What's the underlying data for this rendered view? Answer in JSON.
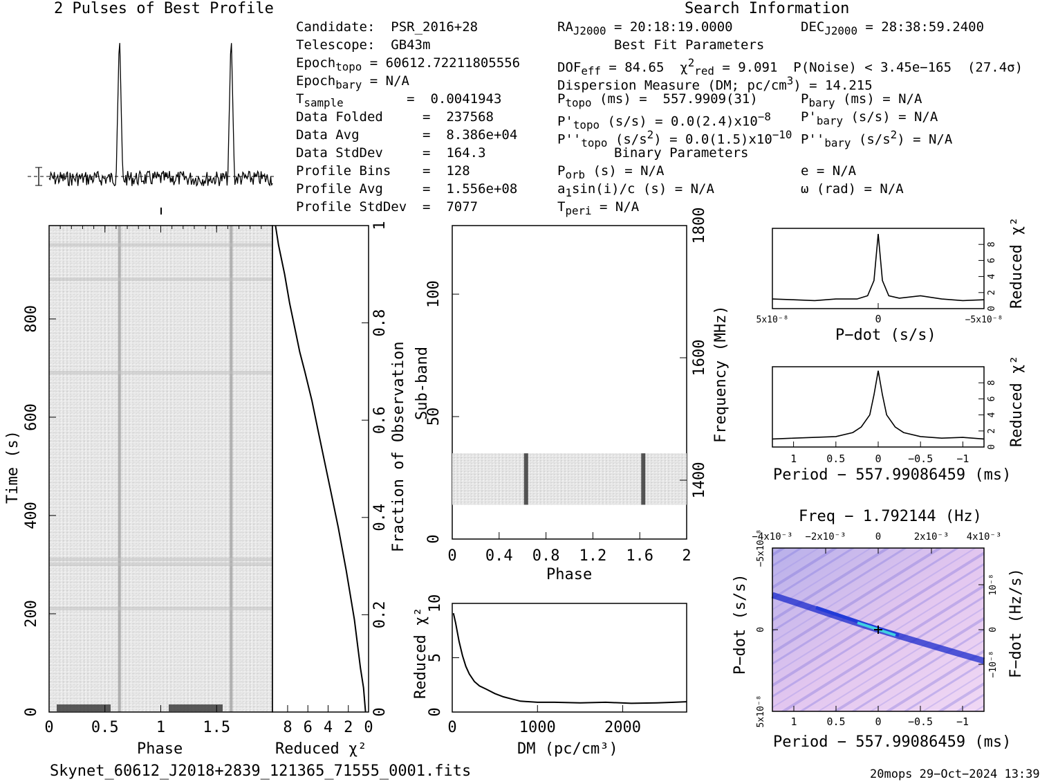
{
  "titles": {
    "profile": "2 Pulses of Best Profile",
    "search": "Search Information",
    "best_fit": "Best Fit Parameters",
    "binary": "Binary Parameters"
  },
  "info": {
    "candidate": "Candidate:  PSR_2016+28",
    "telescope": "Telescope:  GB43m",
    "epoch_topo": "Epoch<sub>topo</sub> = 60612.72211805556",
    "epoch_bary": "Epoch<sub>bary</sub> = N/A",
    "t_sample": "T<sub>sample</sub>        =  0.0041943",
    "data_folded": "Data Folded     =  237568",
    "data_avg": "Data Avg        =  8.386e+04",
    "data_stddev": "Data StdDev     =  164.3",
    "profile_bins": "Profile Bins    =  128",
    "profile_avg": "Profile Avg     =  1.556e+08",
    "profile_stddev": "Profile StdDev  =  7077",
    "ra": "RA<sub>J2000</sub> = 20:18:19.0000",
    "dec": "DEC<sub>J2000</sub> = 28:38:59.2400",
    "dof": "DOF<sub>eff</sub> = 84.65  &chi;<sup>2</sup><sub>red</sub> = 9.091  P(Noise) &lt; 3.45e−165  (27.4&sigma;)",
    "dm": "Dispersion Measure (DM; pc/cm<sup>3</sup>) = 14.215",
    "p_topo": "P<sub>topo</sub> (ms) =  557.9909(31)",
    "pd_topo": "P'<sub>topo</sub> (s/s) = 0.0(2.4)x10<sup>−8</sup>",
    "pdd_topo": "P''<sub>topo</sub> (s/s<sup>2</sup>) = 0.0(1.5)x10<sup>−10</sup>",
    "p_bary": "P<sub>bary</sub> (ms) = N/A",
    "pd_bary": "P'<sub>bary</sub> (s/s) = N/A",
    "pdd_bary": "P''<sub>bary</sub> (s/s<sup>2</sup>) = N/A",
    "p_orb": "P<sub>orb</sub> (s) = N/A",
    "a1sini": "a<sub>1</sub>sin(i)/c (s) = N/A",
    "t_peri": "T<sub>peri</sub> = N/A",
    "ecc": "e = N/A",
    "omega": "&omega; (rad) = N/A"
  },
  "footer": {
    "filename": "Skynet_60612_J2018+2839_121365_71555_0001.fits",
    "stamp": "20mops 29−Oct−2024 13:39"
  },
  "colors": {
    "ink": "#000000",
    "greyscale_bg": "#e8e8e8",
    "ppdot_bg": "#e6c8f0",
    "ppdot_ridge": "#1a2acc",
    "ppdot_peak": "#40d0e0"
  },
  "chart_data": [
    {
      "id": "profile",
      "type": "line",
      "title": "2 Pulses of Best Profile",
      "xlim": [
        0,
        2
      ],
      "note_peaks_at_phase": [
        0.63,
        1.63
      ]
    },
    {
      "id": "time_phase",
      "type": "heatmap",
      "xlabel": "Phase",
      "ylabel": "Time (s)",
      "xlim": [
        0,
        2
      ],
      "ylim": [
        0,
        990
      ],
      "xticks": [
        "0",
        "0.5",
        "1",
        "1.5"
      ],
      "yticks": [
        "0",
        "200",
        "400",
        "600",
        "800"
      ],
      "pulse_phases": [
        0.63,
        1.63
      ]
    },
    {
      "id": "time_chi2",
      "type": "line",
      "xlabel": "Reduced χ²",
      "ylabel_right": "Fraction of Observation",
      "xlim": [
        9.5,
        0
      ],
      "ylim": [
        0,
        1
      ],
      "xticks": [
        "8",
        "6",
        "4",
        "2",
        "0"
      ],
      "yticks": [
        "0",
        "0.2",
        "0.4",
        "0.6",
        "0.8",
        "1"
      ],
      "x": [
        0.3,
        0.5,
        0.8,
        1.4,
        2.2,
        3.0,
        3.7,
        4.4,
        5.0,
        5.6,
        6.3,
        6.8,
        7.2,
        7.8,
        8.3,
        8.9,
        9.2
      ],
      "y": [
        0.0,
        0.05,
        0.09,
        0.19,
        0.29,
        0.38,
        0.45,
        0.52,
        0.58,
        0.64,
        0.7,
        0.74,
        0.78,
        0.84,
        0.9,
        0.96,
        1.0
      ]
    },
    {
      "id": "subband_phase",
      "type": "heatmap",
      "xlabel": "Phase",
      "ylabel": "Sub-band",
      "ylabel_right": "Frequency (MHz)",
      "xlim": [
        0,
        2
      ],
      "ylim": [
        0,
        128
      ],
      "xticks": [
        "0",
        "0.4",
        "0.8",
        "1.2",
        "1.6",
        "2"
      ],
      "yticks": [
        "0",
        "50",
        "100"
      ],
      "freq_ticks": [
        "1400",
        "1600",
        "1800"
      ],
      "data_band": [
        14,
        35
      ],
      "pulse_phases": [
        0.63,
        1.63
      ]
    },
    {
      "id": "dm_chi2",
      "type": "line",
      "xlabel": "DM (pc/cm³)",
      "ylabel": "Reduced χ²",
      "xlim": [
        0,
        2750
      ],
      "ylim": [
        0,
        10
      ],
      "xticks": [
        "0",
        "1000",
        "2000"
      ],
      "yticks": [
        "0",
        "5",
        "10"
      ],
      "x": [
        14,
        40,
        80,
        120,
        160,
        200,
        260,
        320,
        400,
        500,
        600,
        700,
        800,
        1000,
        1200,
        1500,
        1800,
        2100,
        2400,
        2600,
        2750
      ],
      "y": [
        9.1,
        8.2,
        6.5,
        5.2,
        4.2,
        3.5,
        2.8,
        2.4,
        2.1,
        1.7,
        1.4,
        1.2,
        1.0,
        0.9,
        0.9,
        0.85,
        0.9,
        0.8,
        0.85,
        0.9,
        0.95
      ]
    },
    {
      "id": "pdot_chi2",
      "type": "line",
      "xlabel": "P−dot (s/s)",
      "ylabel_right": "Reduced χ²",
      "xlim": [
        5e-08,
        -5e-08
      ],
      "ylim": [
        0,
        10
      ],
      "xticks": [
        "5x10⁻⁸",
        "0",
        "−5x10⁻⁸"
      ],
      "yticks": [
        "0",
        "2",
        "4",
        "6",
        "8"
      ],
      "x": [
        5e-08,
        4e-08,
        3e-08,
        2e-08,
        1e-08,
        5e-09,
        2e-09,
        0,
        -2e-09,
        -5e-09,
        -1e-08,
        -2e-08,
        -3e-08,
        -4e-08,
        -5e-08
      ],
      "y": [
        1.2,
        1.1,
        1.0,
        1.2,
        1.2,
        1.6,
        3.5,
        9.3,
        3.5,
        1.6,
        1.3,
        1.6,
        1.2,
        1.0,
        1.1
      ]
    },
    {
      "id": "period_chi2",
      "type": "line",
      "xlabel": "Period − 557.99086459 (ms)",
      "ylabel_right": "Reduced χ²",
      "xlim": [
        1.25,
        -1.25
      ],
      "ylim": [
        0,
        10
      ],
      "xticks": [
        "1",
        "0.5",
        "0",
        "−0.5",
        "−1"
      ],
      "yticks": [
        "0",
        "2",
        "4",
        "6",
        "8"
      ],
      "x": [
        1.25,
        1.0,
        0.75,
        0.5,
        0.3,
        0.2,
        0.1,
        0.05,
        0,
        -0.05,
        -0.1,
        -0.2,
        -0.3,
        -0.5,
        -0.75,
        -1.0,
        -1.25
      ],
      "y": [
        1.0,
        1.1,
        1.2,
        1.3,
        1.8,
        2.5,
        4.0,
        6.5,
        9.5,
        6.5,
        4.0,
        2.5,
        1.8,
        1.3,
        1.1,
        1.2,
        1.0
      ]
    },
    {
      "id": "ppdot_plane",
      "type": "heatmap",
      "title": "Freq − 1.792144 (Hz)",
      "xlabel": "Period − 557.99086459 (ms)",
      "ylabel": "P−dot (s/s)",
      "ylabel_right": "F−dot (Hz/s)",
      "xticks": [
        "1",
        "0.5",
        "0",
        "−0.5",
        "−1"
      ],
      "top_ticks": [
        "−4x10⁻³",
        "−2x10⁻³",
        "0",
        "2x10⁻³",
        "4x10⁻³"
      ],
      "yticks": [
        "5x10⁻⁸",
        "0",
        "−5x10⁻⁸"
      ],
      "right_ticks": [
        "−10⁻⁸",
        "0",
        "10⁻⁸"
      ]
    }
  ]
}
